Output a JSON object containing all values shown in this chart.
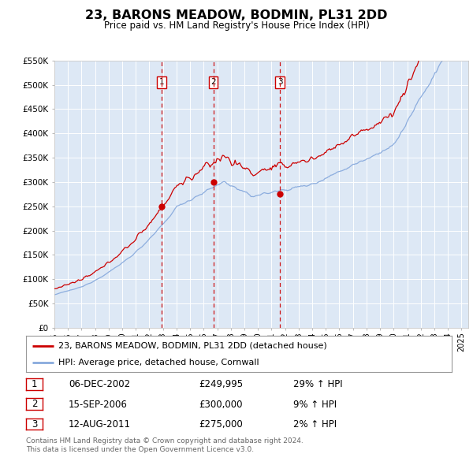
{
  "title": "23, BARONS MEADOW, BODMIN, PL31 2DD",
  "subtitle": "Price paid vs. HM Land Registry's House Price Index (HPI)",
  "background_color": "#ffffff",
  "plot_bg_color": "#dde8f5",
  "grid_color": "#ffffff",
  "sale_color": "#cc0000",
  "hpi_color": "#88aadd",
  "sale_label": "23, BARONS MEADOW, BODMIN, PL31 2DD (detached house)",
  "hpi_label": "HPI: Average price, detached house, Cornwall",
  "ylim": [
    0,
    550000
  ],
  "ytick_labels": [
    "£0",
    "£50K",
    "£100K",
    "£150K",
    "£200K",
    "£250K",
    "£300K",
    "£350K",
    "£400K",
    "£450K",
    "£500K",
    "£550K"
  ],
  "ytick_values": [
    0,
    50000,
    100000,
    150000,
    200000,
    250000,
    300000,
    350000,
    400000,
    450000,
    500000,
    550000
  ],
  "sale_events": [
    {
      "num": 1,
      "date": "06-DEC-2002",
      "price": 249995,
      "hpi_pct": "29%",
      "x_year": 2002.92
    },
    {
      "num": 2,
      "date": "15-SEP-2006",
      "price": 300000,
      "hpi_pct": "9%",
      "x_year": 2006.71
    },
    {
      "num": 3,
      "date": "12-AUG-2011",
      "price": 275000,
      "hpi_pct": "2%",
      "x_year": 2011.62
    }
  ],
  "table_rows": [
    [
      "1",
      "06-DEC-2002",
      "£249,995",
      "29% ↑ HPI"
    ],
    [
      "2",
      "15-SEP-2006",
      "£300,000",
      "9% ↑ HPI"
    ],
    [
      "3",
      "12-AUG-2011",
      "£275,000",
      "2% ↑ HPI"
    ]
  ],
  "footer_line1": "Contains HM Land Registry data © Crown copyright and database right 2024.",
  "footer_line2": "This data is licensed under the Open Government Licence v3.0.",
  "xlim_start": 1995.0,
  "xlim_end": 2025.5
}
